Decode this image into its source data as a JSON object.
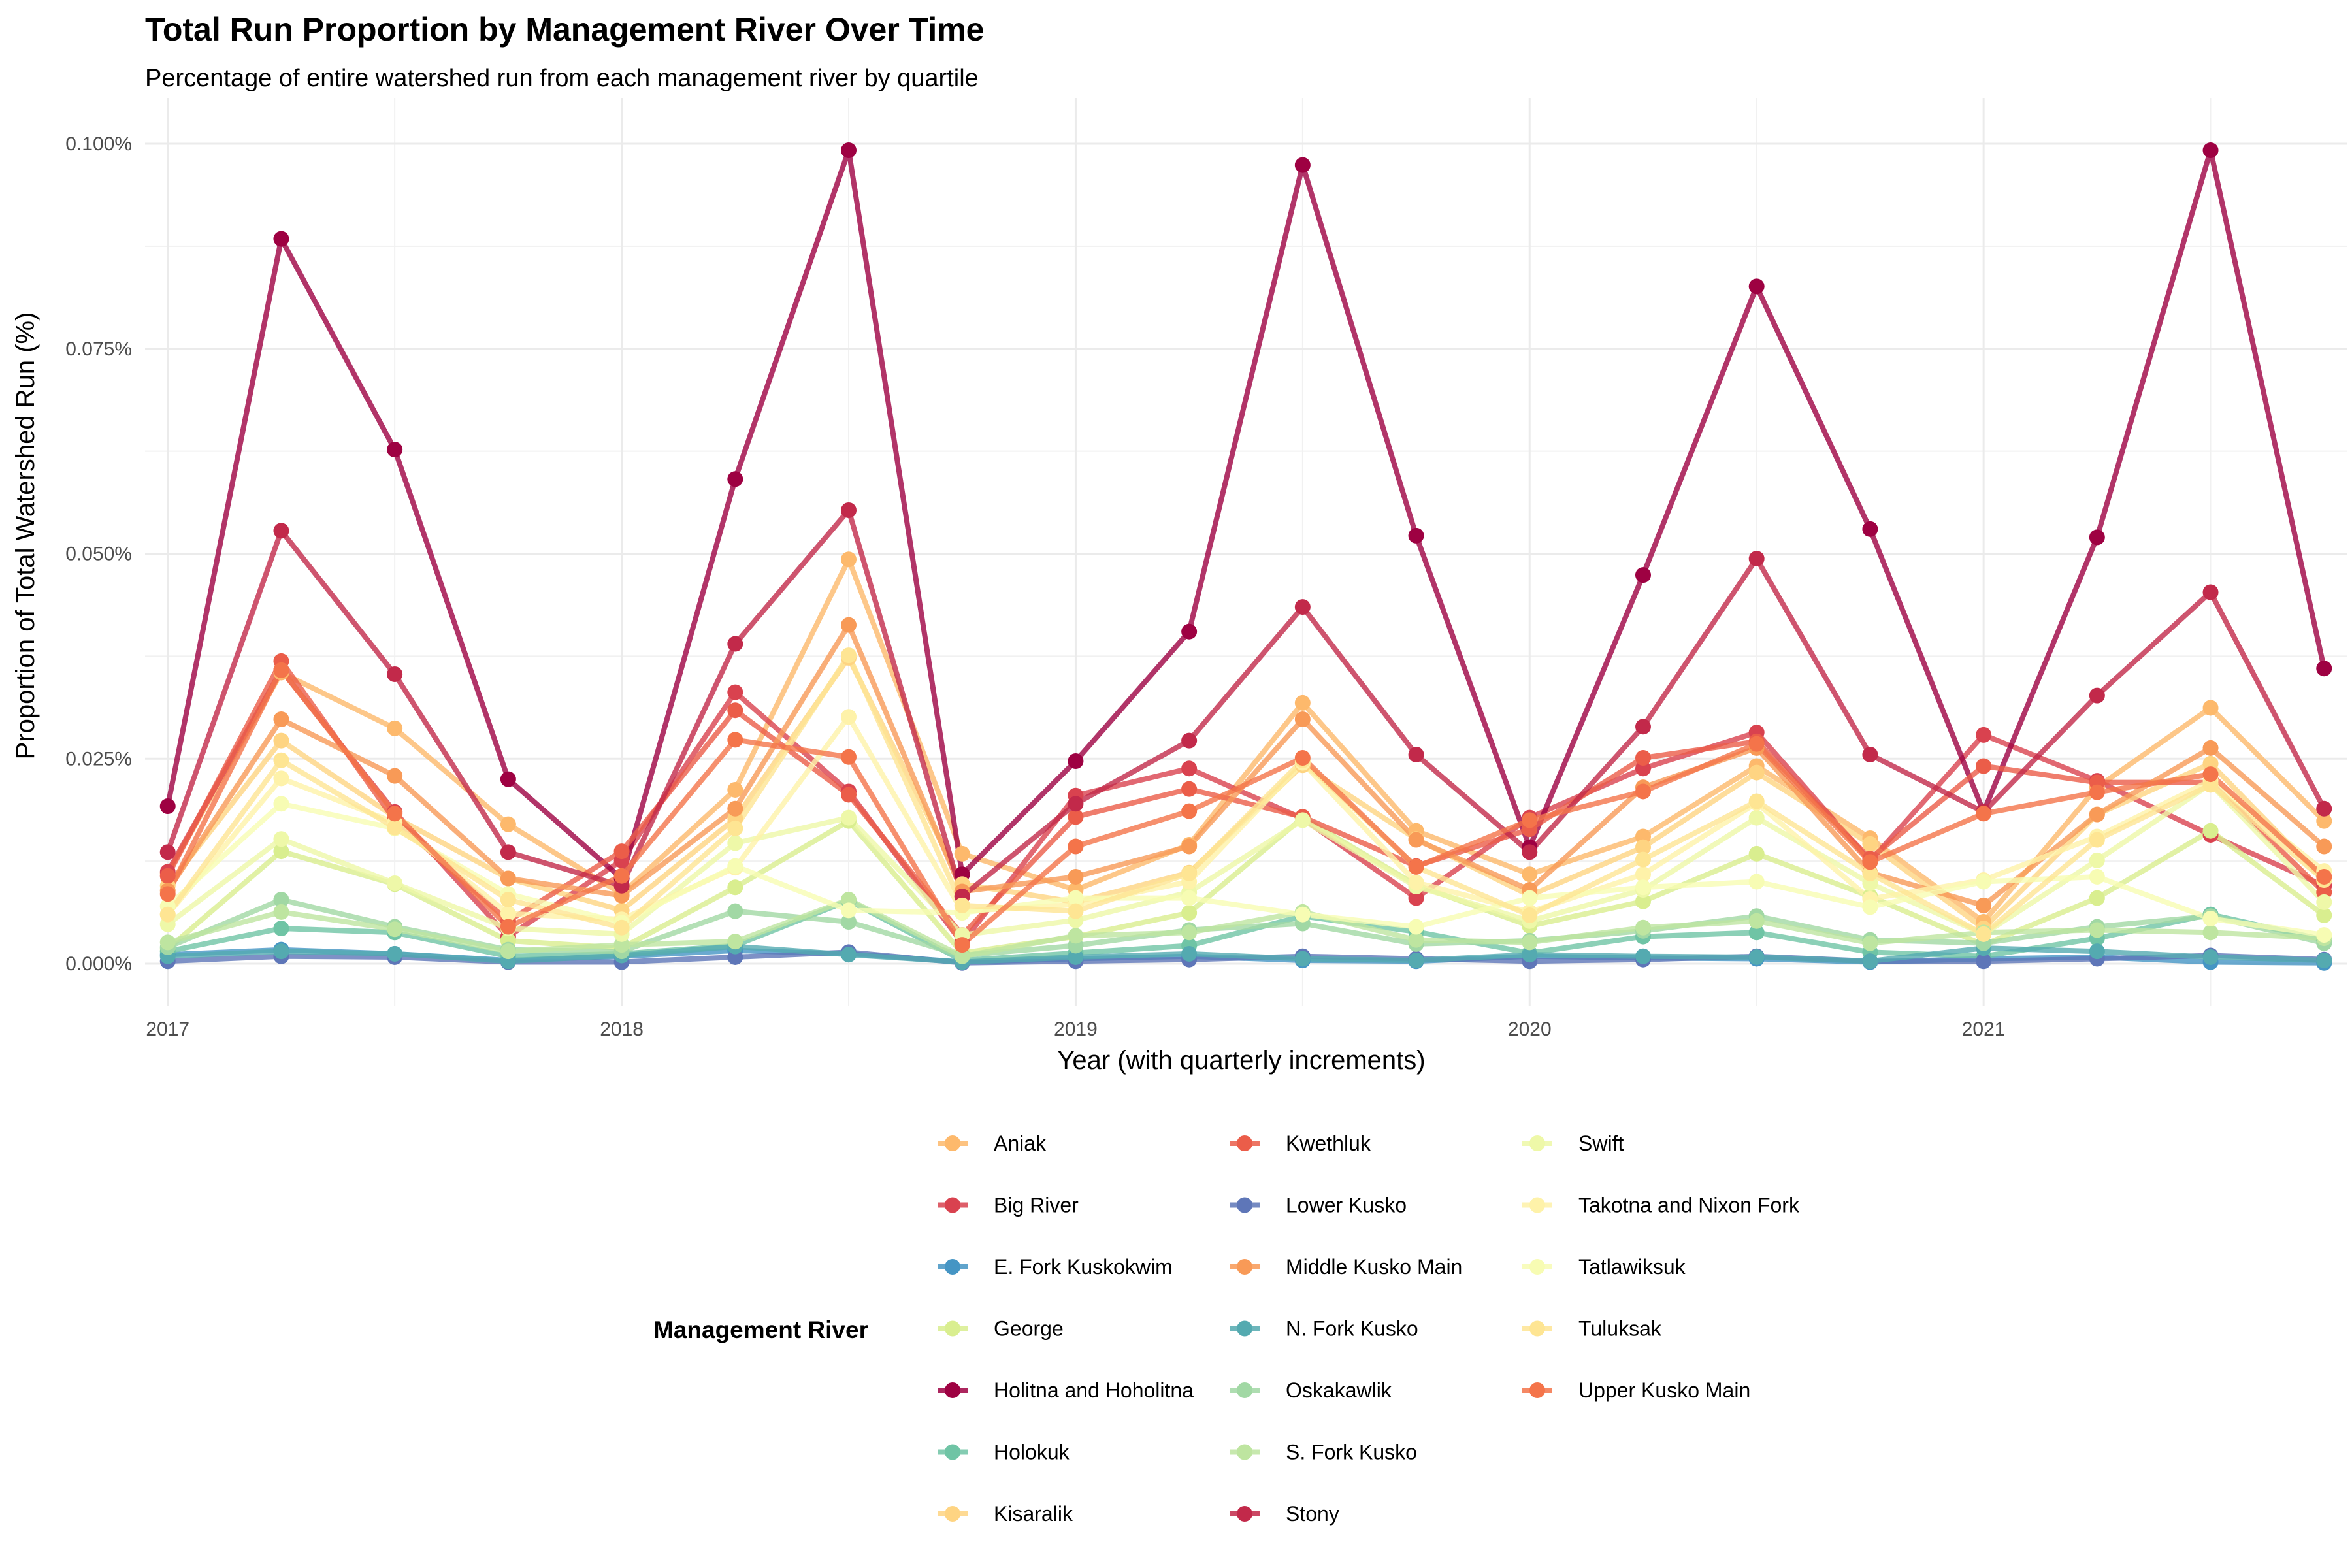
{
  "chart_data": {
    "type": "line",
    "title": "Total Run Proportion by Management River Over Time",
    "subtitle": "Percentage of entire watershed run from each management river by quartile",
    "xlabel": "Year (with quarterly increments)",
    "ylabel": "Proportion of Total Watershed Run (%)",
    "x": [
      2017.0,
      2017.25,
      2017.5,
      2017.75,
      2018.0,
      2018.25,
      2018.5,
      2018.75,
      2019.0,
      2019.25,
      2019.5,
      2019.75,
      2020.0,
      2020.25,
      2020.5,
      2020.75,
      2021.0,
      2021.25,
      2021.5,
      2021.75
    ],
    "xlim": [
      2016.95,
      2021.8
    ],
    "ylim": [
      0.0,
      0.1
    ],
    "x_ticks": [
      2017,
      2018,
      2019,
      2020,
      2021
    ],
    "x_tick_labels": [
      "2017",
      "2018",
      "2019",
      "2020",
      "2021"
    ],
    "y_ticks": [
      0.0,
      0.025,
      0.05,
      0.075,
      0.1
    ],
    "y_tick_labels": [
      "0.000%",
      "0.025%",
      "0.050%",
      "0.075%",
      "0.100%"
    ],
    "grid": true,
    "legend_title": "Management River",
    "legend_position": "bottom",
    "series": [
      {
        "name": "Aniak",
        "color": "#FDB96C",
        "values": [
          0.011,
          0.0355,
          0.0287,
          0.017,
          0.0085,
          0.0212,
          0.0493,
          0.0134,
          0.009,
          0.0145,
          0.0318,
          0.0162,
          0.0109,
          0.0155,
          0.0241,
          0.0153,
          0.0051,
          0.0215,
          0.0312,
          0.0174
        ]
      },
      {
        "name": "Big River",
        "color": "#D9424F",
        "values": [
          0.0112,
          0.0358,
          0.0185,
          0.0033,
          0.0126,
          0.0331,
          0.021,
          0.0025,
          0.0205,
          0.0238,
          0.0177,
          0.008,
          0.0178,
          0.0238,
          0.0282,
          0.0125,
          0.0279,
          0.0223,
          0.0157,
          0.0095
        ]
      },
      {
        "name": "E. Fork Kuskokwim",
        "color": "#4595C4",
        "values": [
          0.0011,
          0.0017,
          0.0012,
          0.0004,
          0.0009,
          0.0016,
          0.0012,
          0.0002,
          0.0006,
          0.0009,
          0.0004,
          0.0003,
          0.0009,
          0.0007,
          0.0006,
          0.0002,
          0.0006,
          0.0008,
          0.0002,
          0.0001
        ]
      },
      {
        "name": "George",
        "color": "#D9EE8F",
        "values": [
          0.0018,
          0.0137,
          0.0097,
          0.0028,
          0.0019,
          0.0093,
          0.0174,
          0.0013,
          0.0033,
          0.0062,
          0.0178,
          0.0096,
          0.0046,
          0.0076,
          0.0134,
          0.0082,
          0.0023,
          0.008,
          0.0162,
          0.0059
        ]
      },
      {
        "name": "Holitna and Hoholitna",
        "color": "#9E0142",
        "values": [
          0.0192,
          0.0884,
          0.0627,
          0.0225,
          0.0104,
          0.0591,
          0.0992,
          0.0109,
          0.0247,
          0.0405,
          0.0974,
          0.0522,
          0.0142,
          0.0474,
          0.0826,
          0.053,
          0.0185,
          0.052,
          0.0992,
          0.036
        ]
      },
      {
        "name": "Holokuk",
        "color": "#6FC4A5",
        "values": [
          0.0015,
          0.0043,
          0.0038,
          0.0009,
          0.0012,
          0.0022,
          0.0077,
          0.0004,
          0.0013,
          0.0022,
          0.0058,
          0.0039,
          0.0013,
          0.0033,
          0.0038,
          0.0014,
          0.0009,
          0.0031,
          0.006,
          0.0029
        ]
      },
      {
        "name": "Kisaralik",
        "color": "#FED482",
        "values": [
          0.0095,
          0.0272,
          0.0179,
          0.0104,
          0.0065,
          0.0177,
          0.0373,
          0.0097,
          0.0075,
          0.0111,
          0.0242,
          0.0152,
          0.0083,
          0.0142,
          0.0233,
          0.0146,
          0.0043,
          0.0182,
          0.0244,
          0.0102
        ]
      },
      {
        "name": "Kwethluk",
        "color": "#EB5D49",
        "values": [
          0.0107,
          0.0369,
          0.0175,
          0.0052,
          0.0137,
          0.0309,
          0.0206,
          0.0035,
          0.0179,
          0.0213,
          0.0179,
          0.0119,
          0.0164,
          0.0251,
          0.0271,
          0.0128,
          0.0241,
          0.0221,
          0.0221,
          0.0087
        ]
      },
      {
        "name": "Lower Kusko",
        "color": "#5E76B8",
        "values": [
          0.0003,
          0.0009,
          0.0008,
          0.0002,
          0.0002,
          0.0008,
          0.0014,
          0.0001,
          0.0003,
          0.0005,
          0.0009,
          0.0006,
          0.0003,
          0.0005,
          0.0009,
          0.0003,
          0.0003,
          0.0006,
          0.001,
          0.0005
        ]
      },
      {
        "name": "Middle Kusko Main",
        "color": "#F89A57",
        "values": [
          0.0089,
          0.0298,
          0.0229,
          0.0104,
          0.0083,
          0.0189,
          0.0413,
          0.0088,
          0.0106,
          0.0143,
          0.0298,
          0.0151,
          0.009,
          0.0215,
          0.0263,
          0.0111,
          0.0071,
          0.0182,
          0.0263,
          0.0143
        ]
      },
      {
        "name": "N. Fork Kusko",
        "color": "#54AAB0",
        "values": [
          0.0009,
          0.0015,
          0.0012,
          0.0003,
          0.001,
          0.0021,
          0.0011,
          0.0002,
          0.0008,
          0.0012,
          0.0006,
          0.0004,
          0.0011,
          0.0009,
          0.0008,
          0.0003,
          0.0019,
          0.0015,
          0.0008,
          0.0004
        ]
      },
      {
        "name": "Oskakawlik",
        "color": "#A1D8A4",
        "values": [
          0.002,
          0.0078,
          0.0045,
          0.0017,
          0.0015,
          0.0064,
          0.0051,
          0.001,
          0.0022,
          0.0041,
          0.0049,
          0.0024,
          0.0028,
          0.004,
          0.0058,
          0.0029,
          0.0025,
          0.0045,
          0.0058,
          0.0025
        ]
      },
      {
        "name": "S. Fork Kusko",
        "color": "#BEE5A0",
        "values": [
          0.0026,
          0.0063,
          0.0042,
          0.0015,
          0.0023,
          0.0027,
          0.0078,
          0.0009,
          0.0034,
          0.0038,
          0.0063,
          0.0029,
          0.0026,
          0.0044,
          0.0052,
          0.0025,
          0.0038,
          0.0041,
          0.0038,
          0.0031
        ]
      },
      {
        "name": "Stony",
        "color": "#C2294A",
        "values": [
          0.0136,
          0.0528,
          0.0353,
          0.0136,
          0.0095,
          0.039,
          0.0553,
          0.0082,
          0.0195,
          0.0272,
          0.0435,
          0.0255,
          0.0136,
          0.0289,
          0.0494,
          0.0255,
          0.0185,
          0.0327,
          0.0453,
          0.0189
        ]
      },
      {
        "name": "Swift",
        "color": "#EEF8A8",
        "values": [
          0.0048,
          0.0152,
          0.0098,
          0.0043,
          0.0036,
          0.0147,
          0.0178,
          0.0035,
          0.0053,
          0.0087,
          0.0175,
          0.0094,
          0.0052,
          0.009,
          0.0178,
          0.0098,
          0.0036,
          0.0126,
          0.0219,
          0.0075
        ]
      },
      {
        "name": "Takotna and Nixon Fork",
        "color": "#FEF2A9",
        "values": [
          0.006,
          0.0226,
          0.0172,
          0.0061,
          0.0054,
          0.0117,
          0.0301,
          0.0064,
          0.0072,
          0.01,
          0.0245,
          0.0099,
          0.0063,
          0.0109,
          0.0196,
          0.0079,
          0.0102,
          0.0155,
          0.0223,
          0.0113
        ]
      },
      {
        "name": "Tatlawiksuk",
        "color": "#F7FCB3",
        "values": [
          0.007,
          0.0195,
          0.0165,
          0.0085,
          0.005,
          0.0119,
          0.0065,
          0.0062,
          0.008,
          0.008,
          0.006,
          0.0045,
          0.008,
          0.0093,
          0.01,
          0.0069,
          0.01,
          0.0106,
          0.0055,
          0.0035
        ]
      },
      {
        "name": "Tuluksak",
        "color": "#FEE593",
        "values": [
          0.006,
          0.0248,
          0.0166,
          0.0078,
          0.0044,
          0.0165,
          0.0376,
          0.0071,
          0.0064,
          0.011,
          0.0248,
          0.0118,
          0.0059,
          0.0127,
          0.0198,
          0.011,
          0.0036,
          0.0151,
          0.0218,
          0.0102
        ]
      },
      {
        "name": "Upper Kusko Main",
        "color": "#F4744A",
        "values": [
          0.0085,
          0.0358,
          0.0183,
          0.0045,
          0.0107,
          0.0273,
          0.0252,
          0.0023,
          0.0143,
          0.0186,
          0.0251,
          0.0118,
          0.0175,
          0.021,
          0.0268,
          0.0124,
          0.0183,
          0.0209,
          0.0231,
          0.0106
        ]
      }
    ]
  }
}
